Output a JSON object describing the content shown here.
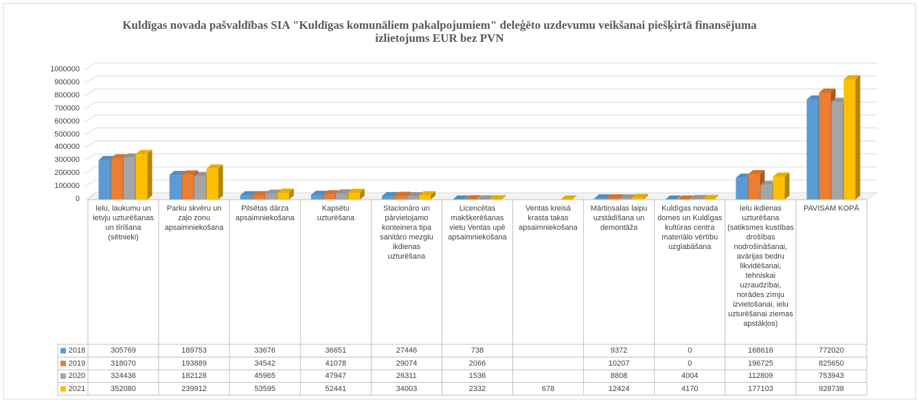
{
  "chart_data": {
    "type": "bar3d",
    "title": "Kuldīgas novada pašvaldības SIA \"Kuldīgas komunāliem pakalpojumiem\"  deleģēto uzdevumu veikšanai piešķirtā finansējuma izlietojums  EUR bez PVN",
    "categories": [
      "Ielu, laukumu un ietvju uzturēšanas un tīrīšana (sētnieki)",
      "Parku skvēru un zaļo zonu apsaimniekošana",
      "Pilsētas dārza apsaimniekošana",
      "Kapsētu uzturēšana",
      "Stacionāro un pārvietojamo konteinera tipa sanitāro mezglu ikdienas uzturēšana",
      "Licencētas makšķerēšanas vietu Ventas upē apsaimniekošana",
      "Ventas kreisā krasta takas apsaimniekošana",
      "Mārtiņsalas laipu uzstādīšana un demontāža",
      "Kuldīgas novada domes un Kuldīgas kultūras centra materiālo vērtību uzglabāšana",
      "Ielu ikdienas uzturēšana (satiksmes kustības drošības nodrošināšanai, avārijas bedru likvidēšanai, tehniskai uzraudzībai, norādes zīmju izvietošanai, ielu uzturēšanai ziemas apstākļos)",
      "PAVISAM KOPĀ"
    ],
    "series": [
      {
        "name": "2018",
        "color": "#5b9bd5",
        "values": [
          305769,
          189753,
          33676,
          36651,
          27446,
          738,
          null,
          9372,
          0,
          168616,
          772020
        ]
      },
      {
        "name": "2019",
        "color": "#ed7d31",
        "values": [
          318070,
          193889,
          34542,
          41078,
          29074,
          2066,
          null,
          10207,
          0,
          196725,
          825650
        ]
      },
      {
        "name": "2020",
        "color": "#a5a5a5",
        "values": [
          324436,
          182128,
          45965,
          47947,
          26311,
          1536,
          null,
          8808,
          4004,
          112809,
          753943
        ]
      },
      {
        "name": "2021",
        "color": "#ffc000",
        "values": [
          352080,
          239912,
          53595,
          52441,
          34003,
          2332,
          678,
          12424,
          4170,
          177103,
          928738
        ]
      }
    ],
    "ylim": [
      0,
      1000000
    ],
    "yticks": [
      0,
      100000,
      200000,
      300000,
      400000,
      500000,
      600000,
      700000,
      800000,
      900000,
      1000000
    ],
    "grid": true
  }
}
